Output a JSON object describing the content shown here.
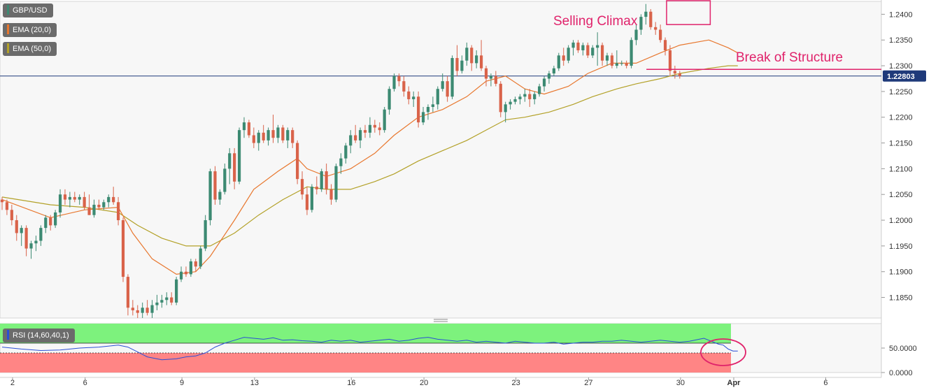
{
  "legend": {
    "symbol": "GBP/USD",
    "ema20_label": "EMA (20,0)",
    "ema50_label": "EMA (50,0)",
    "rsi_label": "RSI (14,60,40,1)"
  },
  "annotations": {
    "selling_climax": "Selling Climax",
    "break_of_structure": "Break of Structure"
  },
  "colors": {
    "bull": "#3c8a72",
    "bear": "#d9634a",
    "ema20": "#e8772e",
    "ema50": "#b3a128",
    "annotation": "#e0236b",
    "price_line": "#1f3a7a",
    "rsi_line": "#2a4fd6",
    "rsi_upper_zone": "#7df27d",
    "rsi_lower_zone": "#ff8585"
  },
  "chart_data": [
    {
      "type": "candlestick",
      "symbol": "GBP/USD",
      "ylim": [
        1.181,
        1.2425
      ],
      "yticks": [
        1.24,
        1.235,
        1.23,
        1.225,
        1.22,
        1.215,
        1.21,
        1.205,
        1.2,
        1.195,
        1.19,
        1.185
      ],
      "ytick_labels": [
        "1.2400",
        "1.2350",
        "1.2300",
        "1.2250",
        "1.2200",
        "1.2150",
        "1.2100",
        "1.2050",
        "1.2000",
        "1.1950",
        "1.1900",
        "1.1850"
      ],
      "xtick_labels": [
        "2",
        "6",
        "9",
        "13",
        "16",
        "20",
        "23",
        "27",
        "30",
        "Apr",
        "6"
      ],
      "xtick_bars": [
        1,
        16,
        36,
        51,
        71,
        86,
        105,
        120,
        139,
        150,
        169
      ],
      "current_price": 1.228,
      "current_price_label": "1.22803",
      "candles": [
        [
          1.204,
          1.2045,
          1.202,
          1.2035
        ],
        [
          1.2035,
          1.204,
          1.201,
          1.202
        ],
        [
          1.202,
          1.203,
          1.199,
          1.2
        ],
        [
          1.2,
          1.201,
          1.196,
          1.1975
        ],
        [
          1.1975,
          1.199,
          1.195,
          1.1985
        ],
        [
          1.1985,
          1.199,
          1.193,
          1.1945
        ],
        [
          1.1945,
          1.196,
          1.1925,
          1.1955
        ],
        [
          1.1955,
          1.197,
          1.194,
          1.196
        ],
        [
          1.196,
          1.199,
          1.195,
          1.1985
        ],
        [
          1.1985,
          1.201,
          1.1975,
          1.2005
        ],
        [
          1.2005,
          1.201,
          1.198,
          1.199
        ],
        [
          1.199,
          1.202,
          1.1985,
          1.2015
        ],
        [
          1.2015,
          1.206,
          1.2005,
          1.205
        ],
        [
          1.205,
          1.206,
          1.203,
          1.204
        ],
        [
          1.204,
          1.2055,
          1.2025,
          1.2045
        ],
        [
          1.2045,
          1.2055,
          1.2035,
          1.204
        ],
        [
          1.204,
          1.205,
          1.203,
          1.2045
        ],
        [
          1.2045,
          1.2055,
          1.202,
          1.2025
        ],
        [
          1.2025,
          1.205,
          1.201,
          1.201
        ],
        [
          1.201,
          1.204,
          1.2005,
          1.203
        ],
        [
          1.203,
          1.204,
          1.202,
          1.2025
        ],
        [
          1.2025,
          1.204,
          1.202,
          1.2035
        ],
        [
          1.2035,
          1.205,
          1.2025,
          1.2045
        ],
        [
          1.2045,
          1.2065,
          1.203,
          1.2035
        ],
        [
          1.2035,
          1.2045,
          1.199,
          1.2
        ],
        [
          1.2,
          1.2005,
          1.188,
          1.189
        ],
        [
          1.189,
          1.1895,
          1.1815,
          1.183
        ],
        [
          1.183,
          1.1845,
          1.1815,
          1.1825
        ],
        [
          1.1825,
          1.1835,
          1.181,
          1.182
        ],
        [
          1.182,
          1.184,
          1.181,
          1.183
        ],
        [
          1.183,
          1.1845,
          1.1815,
          1.182
        ],
        [
          1.182,
          1.1845,
          1.181,
          1.1835
        ],
        [
          1.1835,
          1.1855,
          1.1825,
          1.184
        ],
        [
          1.184,
          1.1855,
          1.183,
          1.1845
        ],
        [
          1.1845,
          1.186,
          1.1835,
          1.185
        ],
        [
          1.185,
          1.186,
          1.1835,
          1.184
        ],
        [
          1.184,
          1.189,
          1.1835,
          1.1885
        ],
        [
          1.1885,
          1.191,
          1.188,
          1.19
        ],
        [
          1.19,
          1.191,
          1.189,
          1.1895
        ],
        [
          1.1895,
          1.1925,
          1.189,
          1.192
        ],
        [
          1.192,
          1.1925,
          1.19,
          1.191
        ],
        [
          1.191,
          1.195,
          1.1905,
          1.1945
        ],
        [
          1.1945,
          1.201,
          1.194,
          1.2
        ],
        [
          1.2,
          1.21,
          1.199,
          1.2095
        ],
        [
          1.2095,
          1.2105,
          1.203,
          1.204
        ],
        [
          1.204,
          1.206,
          1.203,
          1.2055
        ],
        [
          1.2055,
          1.211,
          1.205,
          1.21
        ],
        [
          1.21,
          1.214,
          1.207,
          1.213
        ],
        [
          1.213,
          1.214,
          1.206,
          1.2075
        ],
        [
          1.2075,
          1.218,
          1.207,
          1.2175
        ],
        [
          1.2175,
          1.22,
          1.216,
          1.219
        ],
        [
          1.219,
          1.2195,
          1.216,
          1.2165
        ],
        [
          1.2165,
          1.218,
          1.214,
          1.215
        ],
        [
          1.215,
          1.2175,
          1.2135,
          1.217
        ],
        [
          1.217,
          1.2185,
          1.215,
          1.2155
        ],
        [
          1.2155,
          1.218,
          1.2145,
          1.2175
        ],
        [
          1.2175,
          1.2205,
          1.215,
          1.216
        ],
        [
          1.216,
          1.2185,
          1.215,
          1.218
        ],
        [
          1.218,
          1.2185,
          1.215,
          1.2155
        ],
        [
          1.2155,
          1.218,
          1.214,
          1.2175
        ],
        [
          1.2175,
          1.218,
          1.214,
          1.215
        ],
        [
          1.215,
          1.2155,
          1.207,
          1.208
        ],
        [
          1.208,
          1.2095,
          1.204,
          1.205
        ],
        [
          1.205,
          1.2065,
          1.201,
          1.202
        ],
        [
          1.202,
          1.207,
          1.2015,
          1.2065
        ],
        [
          1.2065,
          1.2085,
          1.205,
          1.206
        ],
        [
          1.206,
          1.21,
          1.2055,
          1.2095
        ],
        [
          1.2095,
          1.211,
          1.205,
          1.206
        ],
        [
          1.206,
          1.207,
          1.203,
          1.204
        ],
        [
          1.204,
          1.211,
          1.2035,
          1.2105
        ],
        [
          1.2105,
          1.213,
          1.209,
          1.212
        ],
        [
          1.212,
          1.215,
          1.211,
          1.2145
        ],
        [
          1.2145,
          1.2175,
          1.213,
          1.2165
        ],
        [
          1.2165,
          1.2185,
          1.215,
          1.2155
        ],
        [
          1.2155,
          1.218,
          1.214,
          1.2175
        ],
        [
          1.2175,
          1.2185,
          1.216,
          1.217
        ],
        [
          1.217,
          1.22,
          1.216,
          1.2185
        ],
        [
          1.2185,
          1.2195,
          1.217,
          1.218
        ],
        [
          1.218,
          1.219,
          1.2165,
          1.2175
        ],
        [
          1.2175,
          1.222,
          1.217,
          1.2215
        ],
        [
          1.2215,
          1.226,
          1.2205,
          1.2255
        ],
        [
          1.2255,
          1.2285,
          1.225,
          1.228
        ],
        [
          1.228,
          1.2285,
          1.226,
          1.227
        ],
        [
          1.227,
          1.228,
          1.224,
          1.225
        ],
        [
          1.225,
          1.226,
          1.2225,
          1.2235
        ],
        [
          1.2235,
          1.225,
          1.222,
          1.224
        ],
        [
          1.224,
          1.225,
          1.218,
          1.219
        ],
        [
          1.219,
          1.222,
          1.2185,
          1.221
        ],
        [
          1.221,
          1.2225,
          1.2195,
          1.222
        ],
        [
          1.222,
          1.224,
          1.221,
          1.2225
        ],
        [
          1.2225,
          1.226,
          1.2215,
          1.2255
        ],
        [
          1.2255,
          1.2285,
          1.225,
          1.227
        ],
        [
          1.227,
          1.228,
          1.223,
          1.224
        ],
        [
          1.224,
          1.232,
          1.2235,
          1.2315
        ],
        [
          1.2315,
          1.234,
          1.228,
          1.229
        ],
        [
          1.229,
          1.232,
          1.2285,
          1.231
        ],
        [
          1.231,
          1.2345,
          1.23,
          1.2335
        ],
        [
          1.2335,
          1.234,
          1.229,
          1.2305
        ],
        [
          1.2305,
          1.233,
          1.2295,
          1.232
        ],
        [
          1.232,
          1.235,
          1.229,
          1.2295
        ],
        [
          1.2295,
          1.23,
          1.226,
          1.2275
        ],
        [
          1.2275,
          1.2285,
          1.226,
          1.228
        ],
        [
          1.228,
          1.229,
          1.226,
          1.2265
        ],
        [
          1.2265,
          1.227,
          1.22,
          1.221
        ],
        [
          1.221,
          1.223,
          1.219,
          1.2225
        ],
        [
          1.2225,
          1.2235,
          1.2215,
          1.223
        ],
        [
          1.223,
          1.224,
          1.2225,
          1.2235
        ],
        [
          1.2235,
          1.2245,
          1.2225,
          1.224
        ],
        [
          1.224,
          1.2255,
          1.223,
          1.2245
        ],
        [
          1.2245,
          1.2255,
          1.222,
          1.2235
        ],
        [
          1.2235,
          1.225,
          1.2225,
          1.2245
        ],
        [
          1.2245,
          1.2265,
          1.224,
          1.226
        ],
        [
          1.226,
          1.228,
          1.225,
          1.2275
        ],
        [
          1.2275,
          1.229,
          1.2265,
          1.2285
        ],
        [
          1.2285,
          1.23,
          1.228,
          1.2295
        ],
        [
          1.2295,
          1.2325,
          1.229,
          1.232
        ],
        [
          1.232,
          1.2335,
          1.23,
          1.231
        ],
        [
          1.231,
          1.234,
          1.2305,
          1.2335
        ],
        [
          1.2335,
          1.235,
          1.232,
          1.2345
        ],
        [
          1.2345,
          1.235,
          1.2325,
          1.233
        ],
        [
          1.233,
          1.2345,
          1.232,
          1.234
        ],
        [
          1.234,
          1.2345,
          1.2315,
          1.232
        ],
        [
          1.232,
          1.234,
          1.2315,
          1.2335
        ],
        [
          1.2335,
          1.2365,
          1.23,
          1.234
        ],
        [
          1.234,
          1.2345,
          1.23,
          1.231
        ],
        [
          1.231,
          1.2325,
          1.23,
          1.232
        ],
        [
          1.232,
          1.2325,
          1.2295,
          1.23
        ],
        [
          1.23,
          1.233,
          1.2295,
          1.2305
        ],
        [
          1.2305,
          1.231,
          1.23,
          1.2305
        ],
        [
          1.2305,
          1.231,
          1.2295,
          1.23
        ],
        [
          1.23,
          1.2355,
          1.2295,
          1.235
        ],
        [
          1.235,
          1.238,
          1.234,
          1.237
        ],
        [
          1.237,
          1.24,
          1.236,
          1.2395
        ],
        [
          1.2395,
          1.242,
          1.238,
          1.2405
        ],
        [
          1.2405,
          1.241,
          1.237,
          1.2375
        ],
        [
          1.2375,
          1.2385,
          1.236,
          1.237
        ],
        [
          1.237,
          1.238,
          1.2345,
          1.235
        ],
        [
          1.235,
          1.2355,
          1.232,
          1.233
        ],
        [
          1.233,
          1.234,
          1.228,
          1.229
        ],
        [
          1.229,
          1.23,
          1.2275,
          1.2285
        ],
        [
          1.2285,
          1.229,
          1.2275,
          1.228
        ]
      ],
      "ema20": [
        [
          0,
          1.204
        ],
        [
          10,
          1.2005
        ],
        [
          17,
          1.202
        ],
        [
          24,
          1.2025
        ],
        [
          27,
          1.1975
        ],
        [
          31,
          1.1925
        ],
        [
          36,
          1.1895
        ],
        [
          40,
          1.19
        ],
        [
          43,
          1.193
        ],
        [
          48,
          1.2
        ],
        [
          52,
          1.206
        ],
        [
          57,
          1.2095
        ],
        [
          61,
          1.212
        ],
        [
          63,
          1.21
        ],
        [
          67,
          1.2085
        ],
        [
          72,
          1.21
        ],
        [
          77,
          1.213
        ],
        [
          81,
          1.2165
        ],
        [
          86,
          1.22
        ],
        [
          91,
          1.2215
        ],
        [
          96,
          1.224
        ],
        [
          100,
          1.227
        ],
        [
          104,
          1.228
        ],
        [
          108,
          1.2255
        ],
        [
          112,
          1.2245
        ],
        [
          117,
          1.226
        ],
        [
          121,
          1.2285
        ],
        [
          126,
          1.2305
        ],
        [
          131,
          1.2305
        ],
        [
          136,
          1.2325
        ],
        [
          140,
          1.234
        ],
        [
          146,
          1.235
        ],
        [
          150,
          1.2335
        ],
        [
          152,
          1.2325
        ]
      ],
      "ema50": [
        [
          0,
          1.2045
        ],
        [
          10,
          1.203
        ],
        [
          17,
          1.2025
        ],
        [
          24,
          1.2015
        ],
        [
          28,
          1.199
        ],
        [
          33,
          1.1965
        ],
        [
          38,
          1.195
        ],
        [
          43,
          1.195
        ],
        [
          48,
          1.1975
        ],
        [
          53,
          1.201
        ],
        [
          58,
          1.204
        ],
        [
          63,
          1.2065
        ],
        [
          67,
          1.206
        ],
        [
          72,
          1.206
        ],
        [
          77,
          1.2075
        ],
        [
          81,
          1.209
        ],
        [
          86,
          1.2115
        ],
        [
          91,
          1.2135
        ],
        [
          96,
          1.2155
        ],
        [
          100,
          1.2175
        ],
        [
          104,
          1.2195
        ],
        [
          108,
          1.22
        ],
        [
          113,
          1.221
        ],
        [
          118,
          1.2225
        ],
        [
          122,
          1.224
        ],
        [
          127,
          1.2255
        ],
        [
          131,
          1.2265
        ],
        [
          136,
          1.2275
        ],
        [
          140,
          1.2285
        ],
        [
          146,
          1.2295
        ],
        [
          150,
          1.23
        ],
        [
          152,
          1.23
        ]
      ],
      "annotation_selling_climax_box": [
        138,
        145,
        1.238,
        1.2425
      ],
      "annotation_break_of_structure_level": 1.2293,
      "annotation_break_of_structure_from_bar": 136
    },
    {
      "type": "line",
      "name": "RSI",
      "ylim": [
        0,
        100
      ],
      "yticks": [
        50,
        0
      ],
      "ytick_labels": [
        "50.0000",
        "0.0000"
      ],
      "upper_band": 60,
      "lower_band": 40,
      "x": [
        0,
        4,
        8,
        12,
        16,
        20,
        24,
        26,
        28,
        30,
        33,
        36,
        38,
        40,
        42,
        44,
        46,
        48,
        50,
        52,
        54,
        56,
        58,
        60,
        62,
        64,
        66,
        68,
        70,
        72,
        74,
        76,
        78,
        80,
        82,
        84,
        86,
        88,
        90,
        92,
        94,
        96,
        98,
        100,
        102,
        104,
        106,
        108,
        110,
        112,
        114,
        116,
        118,
        120,
        122,
        124,
        126,
        128,
        130,
        132,
        134,
        136,
        138,
        140,
        142,
        144,
        145,
        146,
        147,
        148,
        149,
        150,
        151,
        152
      ],
      "values": [
        52,
        48,
        45,
        46,
        50,
        52,
        56,
        52,
        42,
        32,
        26,
        28,
        32,
        34,
        40,
        52,
        60,
        66,
        72,
        70,
        68,
        71,
        66,
        67,
        65,
        64,
        62,
        66,
        64,
        66,
        62,
        64,
        66,
        68,
        64,
        66,
        70,
        72,
        68,
        66,
        64,
        66,
        62,
        64,
        62,
        60,
        64,
        62,
        60,
        60,
        62,
        58,
        60,
        62,
        62,
        64,
        64,
        66,
        64,
        62,
        64,
        66,
        64,
        62,
        64,
        68,
        70,
        66,
        62,
        58,
        56,
        48,
        44,
        44
      ]
    }
  ]
}
